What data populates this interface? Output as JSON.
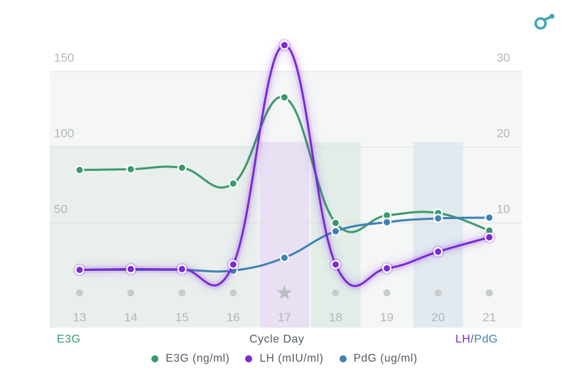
{
  "brand": {
    "icon": "ovulation-logo-icon",
    "color": "#3ea6b5"
  },
  "axes": {
    "x_title": "Cycle Day",
    "left_title": "E3G",
    "right_title_lh": "LH",
    "right_title_sep": "/",
    "right_title_pdg": "PdG"
  },
  "legend": [
    {
      "label": "E3G (ng/ml)",
      "color": "#3a9b6c"
    },
    {
      "label": "LH (mIU/ml)",
      "color": "#7b2ad6"
    },
    {
      "label": "PdG (ug/ml)",
      "color": "#3e82b4"
    }
  ],
  "chart_data": {
    "type": "line",
    "x": [
      13,
      14,
      15,
      16,
      17,
      18,
      19,
      20,
      21
    ],
    "x_tick_labels": [
      "13",
      "14",
      "15",
      "16",
      "17",
      "18",
      "19",
      "20",
      "21"
    ],
    "xlabel": "Cycle Day",
    "y_left": {
      "label": "E3G",
      "ylim": [
        0,
        150
      ],
      "ticks": [
        "50",
        "100",
        "150"
      ],
      "tick_values": [
        50,
        100,
        150
      ]
    },
    "y_right": {
      "label": "LH/PdG",
      "ylim": [
        0,
        30
      ],
      "ticks": [
        "10",
        "20",
        "30"
      ],
      "tick_values": [
        10,
        20,
        30
      ]
    },
    "series": [
      {
        "name": "E3G (ng/ml)",
        "axis": "left",
        "color": "#3a9b6c",
        "values": [
          85,
          85.5,
          86.5,
          76,
          133,
          50,
          55,
          56.5,
          45
        ]
      },
      {
        "name": "LH (mIU/ml)",
        "axis": "right",
        "color": "#7b2ad6",
        "values": [
          3.8,
          3.9,
          3.9,
          4.5,
          33.5,
          4.5,
          4,
          6.2,
          8.1
        ]
      },
      {
        "name": "PdG (ug/ml)",
        "axis": "right",
        "color": "#3e82b4",
        "values": [
          3.8,
          3.8,
          3.8,
          3.7,
          5.4,
          8.9,
          10.1,
          10.6,
          10.7
        ]
      }
    ],
    "day_markers": [
      "dot",
      "dot",
      "dot",
      "dot",
      "star",
      "dot",
      "dot",
      "dot",
      "dot"
    ],
    "highlighted_days": {
      "17": "#7b2ad6",
      "18": "#3a9b6c",
      "20": "#3e82b4"
    },
    "grid": true,
    "legend_position": "bottom"
  }
}
